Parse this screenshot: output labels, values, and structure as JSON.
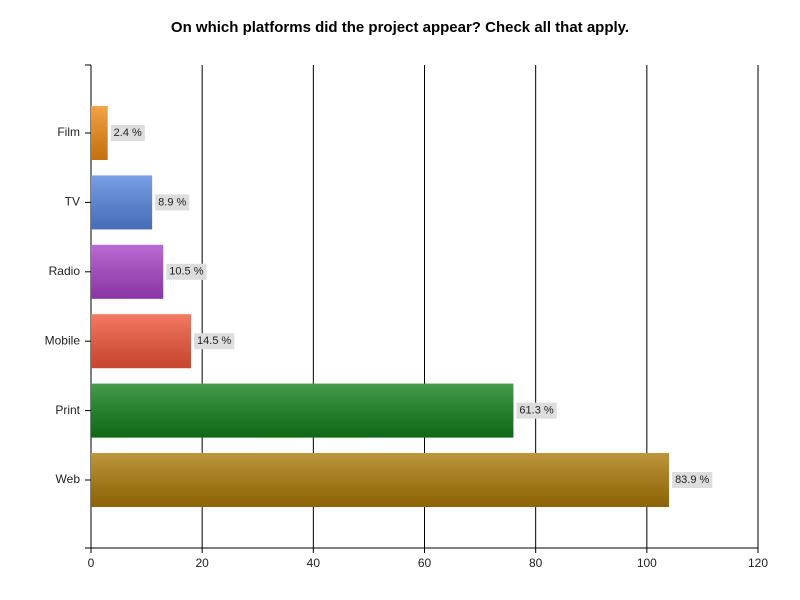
{
  "chart_data": {
    "type": "hbar",
    "title": "On which platforms did the project appear? Check all that apply.",
    "categories": [
      "Film",
      "TV",
      "Radio",
      "Mobile",
      "Print",
      "Web"
    ],
    "values": [
      3,
      11,
      13,
      18,
      76,
      104
    ],
    "share_labels": [
      "2.4 %",
      "8.9 %",
      "10.5 %",
      "14.5 %",
      "61.3 %",
      "83.9 %"
    ],
    "colors": [
      "#f08a12",
      "#5585e0",
      "#a842c8",
      "#f25538",
      "#11801a",
      "#ab7a06"
    ],
    "xlim": [
      0,
      120
    ],
    "xticks": [
      0,
      20,
      40,
      60,
      80,
      100,
      120
    ],
    "grid": true
  }
}
